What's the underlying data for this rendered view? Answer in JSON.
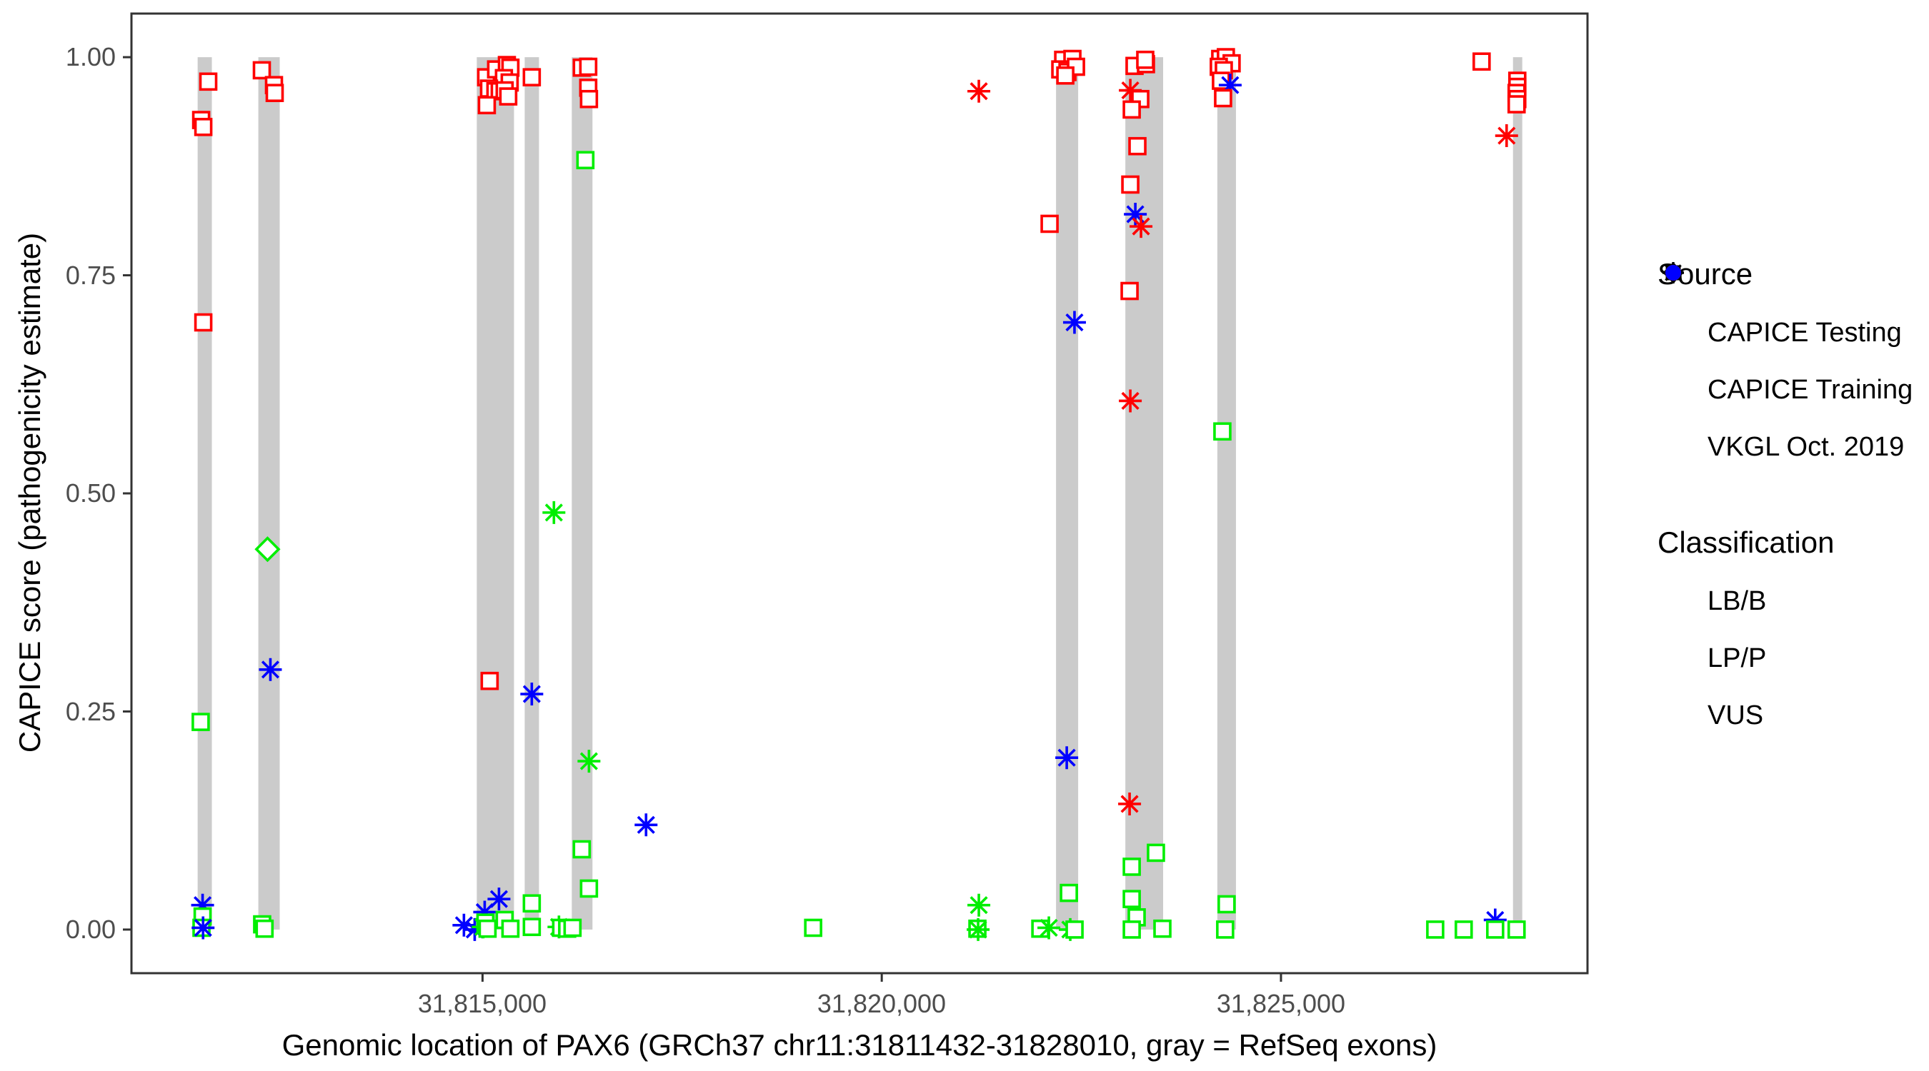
{
  "chart_data": {
    "type": "scatter",
    "xlabel": "Genomic location of PAX6 (GRCh37 chr11:31811432-31828010, gray = RefSeq exons)",
    "ylabel": "CAPICE score (pathogenicity estimate)",
    "xlim": [
      31810603,
      31828839
    ],
    "ylim": [
      -0.05,
      1.05
    ],
    "x_ticks": [
      {
        "value": 31815000,
        "label": "31,815,000"
      },
      {
        "value": 31820000,
        "label": "31,820,000"
      },
      {
        "value": 31825000,
        "label": "31,825,000"
      }
    ],
    "y_ticks": [
      {
        "value": 0.0,
        "label": "0.00"
      },
      {
        "value": 0.25,
        "label": "0.25"
      },
      {
        "value": 0.5,
        "label": "0.50"
      },
      {
        "value": 0.75,
        "label": "0.75"
      },
      {
        "value": 1.0,
        "label": "1.00"
      }
    ],
    "exon_color": "#CBCBCB",
    "exon_y_range": [
      0.0,
      1.0
    ],
    "exons": [
      [
        31811432,
        31811610
      ],
      [
        31812192,
        31812460
      ],
      [
        31814928,
        31815394
      ],
      [
        31815528,
        31815707
      ],
      [
        31816118,
        31816377
      ],
      [
        31822183,
        31822460
      ],
      [
        31823051,
        31823524
      ],
      [
        31824203,
        31824436
      ],
      [
        31827906,
        31828022
      ]
    ],
    "shape_codes": {
      "q": "square (CAPICE Training)",
      "d": "diamond (CAPICE Testing)",
      "a": "asterisk (VKGL Oct. 2019)"
    },
    "class_codes": {
      "g": "LB/B",
      "r": "LP/P",
      "b": "VUS"
    },
    "colors": {
      "g": "#00EE00",
      "r": "#FF0000",
      "b": "#0000FF"
    },
    "points": [
      [
        31811565,
        0.972,
        "q",
        "r"
      ],
      [
        31811476,
        0.928,
        "q",
        "r"
      ],
      [
        31811503,
        0.92,
        "q",
        "r"
      ],
      [
        31811503,
        0.696,
        "q",
        "r"
      ],
      [
        31811470,
        0.238,
        "q",
        "g"
      ],
      [
        31811494,
        0.028,
        "a",
        "b"
      ],
      [
        31811494,
        0.015,
        "q",
        "g"
      ],
      [
        31811480,
        0.002,
        "q",
        "g"
      ],
      [
        31811500,
        0.002,
        "a",
        "b"
      ],
      [
        31812236,
        0.985,
        "q",
        "r"
      ],
      [
        31812388,
        0.968,
        "q",
        "r"
      ],
      [
        31812397,
        0.959,
        "q",
        "r"
      ],
      [
        31812307,
        0.436,
        "d",
        "g"
      ],
      [
        31812343,
        0.298,
        "a",
        "b"
      ],
      [
        31812240,
        0.006,
        "q",
        "g"
      ],
      [
        31812270,
        0.001,
        "q",
        "g"
      ],
      [
        31815045,
        0.977,
        "q",
        "r"
      ],
      [
        31815170,
        0.986,
        "q",
        "r"
      ],
      [
        31815305,
        0.991,
        "q",
        "r"
      ],
      [
        31815349,
        0.988,
        "q",
        "r"
      ],
      [
        31815268,
        0.976,
        "q",
        "r"
      ],
      [
        31815340,
        0.971,
        "q",
        "r"
      ],
      [
        31815081,
        0.964,
        "q",
        "r"
      ],
      [
        31815161,
        0.961,
        "q",
        "r"
      ],
      [
        31815215,
        0.961,
        "q",
        "r"
      ],
      [
        31815277,
        0.962,
        "q",
        "r"
      ],
      [
        31815322,
        0.955,
        "q",
        "r"
      ],
      [
        31815054,
        0.945,
        "q",
        "r"
      ],
      [
        31815089,
        0.285,
        "q",
        "r"
      ],
      [
        31815617,
        0.977,
        "q",
        "r"
      ],
      [
        31815617,
        0.27,
        "a",
        "b"
      ],
      [
        31815894,
        0.478,
        "a",
        "g"
      ],
      [
        31815617,
        0.03,
        "q",
        "g"
      ],
      [
        31815617,
        0.003,
        "q",
        "g"
      ],
      [
        31816243,
        0.988,
        "q",
        "r"
      ],
      [
        31816324,
        0.989,
        "q",
        "r"
      ],
      [
        31816324,
        0.965,
        "q",
        "r"
      ],
      [
        31816333,
        0.952,
        "q",
        "r"
      ],
      [
        31816288,
        0.882,
        "q",
        "g"
      ],
      [
        31816333,
        0.193,
        "a",
        "g"
      ],
      [
        31816243,
        0.092,
        "q",
        "g"
      ],
      [
        31816333,
        0.047,
        "q",
        "g"
      ],
      [
        31814767,
        0.005,
        "a",
        "b"
      ],
      [
        31814902,
        0.0,
        "a",
        "b"
      ],
      [
        31815027,
        0.02,
        "a",
        "b"
      ],
      [
        31815206,
        0.035,
        "a",
        "b"
      ],
      [
        31815009,
        0.003,
        "a",
        "g"
      ],
      [
        31815036,
        0.008,
        "q",
        "g"
      ],
      [
        31815063,
        0.001,
        "q",
        "g"
      ],
      [
        31815277,
        0.011,
        "q",
        "g"
      ],
      [
        31815349,
        0.001,
        "q",
        "g"
      ],
      [
        31815957,
        0.003,
        "a",
        "g"
      ],
      [
        31815984,
        0.002,
        "q",
        "g"
      ],
      [
        31816060,
        0.001,
        "q",
        "g"
      ],
      [
        31816127,
        0.002,
        "q",
        "g"
      ],
      [
        31817048,
        0.12,
        "a",
        "b"
      ],
      [
        31819141,
        0.002,
        "q",
        "g"
      ],
      [
        31821216,
        0.961,
        "a",
        "r"
      ],
      [
        31821216,
        0.028,
        "a",
        "g"
      ],
      [
        31821198,
        0.001,
        "q",
        "g"
      ],
      [
        31821207,
        0.0,
        "a",
        "g"
      ],
      [
        31821986,
        0.001,
        "q",
        "g"
      ],
      [
        31822272,
        0.997,
        "q",
        "r"
      ],
      [
        31822388,
        0.998,
        "q",
        "r"
      ],
      [
        31822236,
        0.986,
        "q",
        "r"
      ],
      [
        31822326,
        0.983,
        "q",
        "r"
      ],
      [
        31822433,
        0.989,
        "q",
        "r"
      ],
      [
        31822299,
        0.979,
        "q",
        "r"
      ],
      [
        31822102,
        0.809,
        "q",
        "r"
      ],
      [
        31822414,
        0.696,
        "a",
        "b"
      ],
      [
        31822317,
        0.197,
        "a",
        "b"
      ],
      [
        31822344,
        0.042,
        "q",
        "g"
      ],
      [
        31822093,
        0.002,
        "a",
        "g"
      ],
      [
        31822361,
        0.0,
        "a",
        "g"
      ],
      [
        31822415,
        0.0,
        "q",
        "g"
      ],
      [
        31823166,
        0.99,
        "q",
        "r"
      ],
      [
        31823309,
        0.992,
        "q",
        "r"
      ],
      [
        31823300,
        0.997,
        "q",
        "r"
      ],
      [
        31823113,
        0.962,
        "a",
        "r"
      ],
      [
        31823238,
        0.952,
        "q",
        "r"
      ],
      [
        31823131,
        0.94,
        "q",
        "r"
      ],
      [
        31823202,
        0.898,
        "q",
        "r"
      ],
      [
        31823113,
        0.854,
        "q",
        "r"
      ],
      [
        31823176,
        0.82,
        "a",
        "b"
      ],
      [
        31823247,
        0.806,
        "a",
        "r"
      ],
      [
        31823104,
        0.732,
        "q",
        "r"
      ],
      [
        31823113,
        0.606,
        "a",
        "r"
      ],
      [
        31823104,
        0.144,
        "a",
        "r"
      ],
      [
        31823434,
        0.088,
        "q",
        "g"
      ],
      [
        31823131,
        0.072,
        "q",
        "g"
      ],
      [
        31823131,
        0.035,
        "q",
        "g"
      ],
      [
        31823193,
        0.014,
        "q",
        "g"
      ],
      [
        31823131,
        0.0,
        "q",
        "g"
      ],
      [
        31823515,
        0.001,
        "q",
        "g"
      ],
      [
        31824239,
        0.998,
        "q",
        "r"
      ],
      [
        31824310,
        1.0,
        "q",
        "r"
      ],
      [
        31824382,
        0.993,
        "q",
        "r"
      ],
      [
        31824221,
        0.989,
        "q",
        "r"
      ],
      [
        31824284,
        0.985,
        "q",
        "r"
      ],
      [
        31824248,
        0.973,
        "q",
        "r"
      ],
      [
        31824364,
        0.968,
        "a",
        "b"
      ],
      [
        31824275,
        0.953,
        "q",
        "r"
      ],
      [
        31824266,
        0.571,
        "q",
        "g"
      ],
      [
        31824319,
        0.029,
        "q",
        "g"
      ],
      [
        31824301,
        0.0,
        "q",
        "g"
      ],
      [
        31827513,
        0.995,
        "q",
        "r"
      ],
      [
        31827960,
        0.973,
        "q",
        "r"
      ],
      [
        31827960,
        0.966,
        "q",
        "r"
      ],
      [
        31827951,
        0.959,
        "q",
        "r"
      ],
      [
        31827960,
        0.952,
        "q",
        "r"
      ],
      [
        31827951,
        0.946,
        "q",
        "r"
      ],
      [
        31827826,
        0.91,
        "a",
        "r"
      ],
      [
        31826932,
        0.0,
        "q",
        "g"
      ],
      [
        31827289,
        0.0,
        "q",
        "g"
      ],
      [
        31827683,
        0.011,
        "a",
        "b"
      ],
      [
        31827683,
        0.0,
        "q",
        "g"
      ],
      [
        31827951,
        0.0,
        "q",
        "g"
      ]
    ]
  },
  "legend": {
    "source": {
      "title": "Source",
      "items": [
        {
          "label": "CAPICE Testing",
          "shape": "diamond"
        },
        {
          "label": "CAPICE Training",
          "shape": "square"
        },
        {
          "label": "VKGL Oct. 2019",
          "shape": "asterisk"
        }
      ]
    },
    "classification": {
      "title": "Classification",
      "items": [
        {
          "label": "LB/B",
          "color": "#00EE00"
        },
        {
          "label": "LP/P",
          "color": "#FF0000"
        },
        {
          "label": "VUS",
          "color": "#0000FF"
        }
      ]
    }
  }
}
